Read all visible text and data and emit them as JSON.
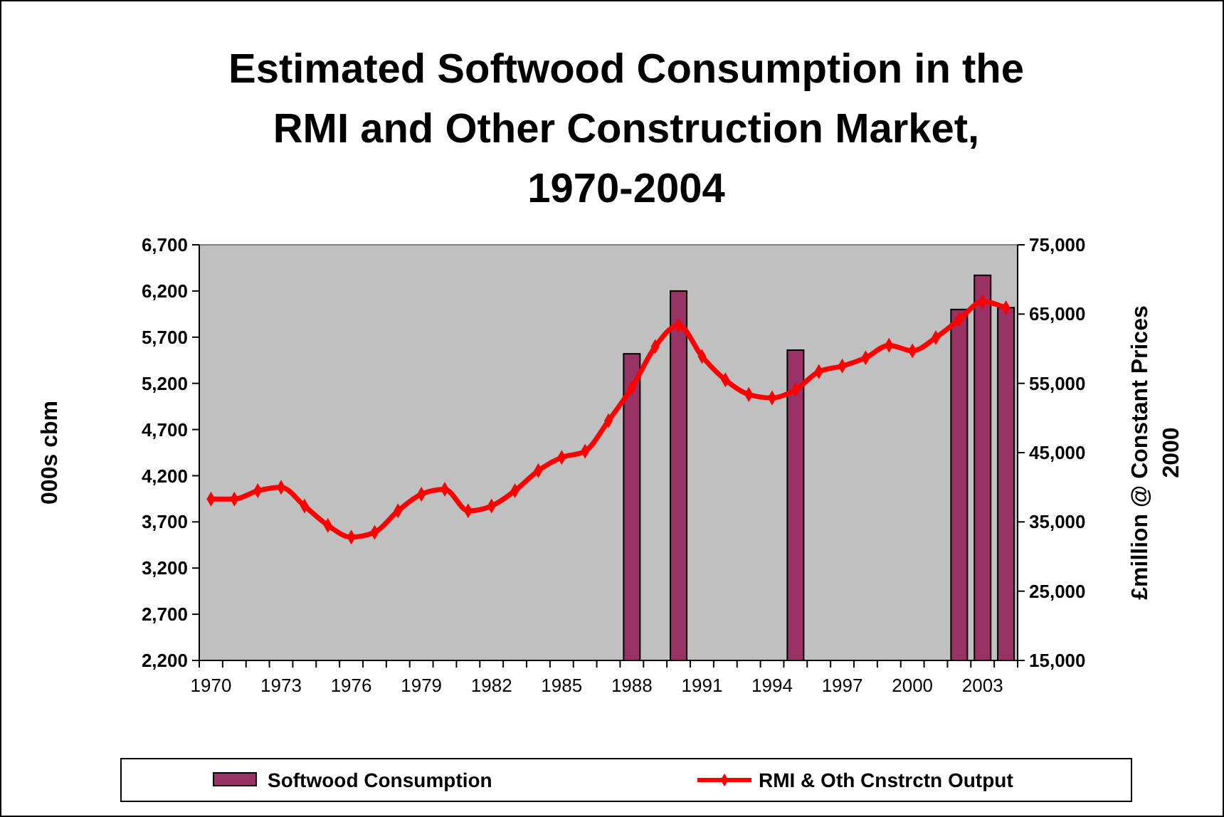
{
  "chart_data": {
    "type": "bar",
    "title": "Estimated Softwood Consumption in the\nRMI and Other Construction Market,\n1970-2004",
    "ylabel": "000s cbm",
    "y2label": "£million @ Constant Prices\n2000",
    "categories": [
      "1970",
      null,
      null,
      "1973",
      null,
      null,
      "1976",
      null,
      null,
      "1979",
      null,
      null,
      "1982",
      null,
      null,
      "1985",
      null,
      null,
      "1988",
      null,
      null,
      "1991",
      null,
      null,
      "1994",
      null,
      null,
      "1997",
      null,
      null,
      "2000",
      null,
      null,
      "2003",
      null
    ],
    "series": [
      {
        "name": "Softwood Consumption",
        "color": "#993366",
        "values": [
          null,
          null,
          null,
          null,
          null,
          null,
          null,
          null,
          null,
          null,
          null,
          null,
          null,
          null,
          null,
          null,
          null,
          null,
          5520,
          null,
          6200,
          null,
          null,
          null,
          null,
          5560,
          null,
          null,
          null,
          null,
          null,
          null,
          6000,
          6370,
          6020
        ]
      },
      {
        "name": "RMI & Oth Cnstrctn Output",
        "type": "line",
        "axis": "y2",
        "color": "#ff0000",
        "values": [
          38300,
          38300,
          39500,
          40000,
          37300,
          34500,
          32800,
          33500,
          36600,
          39000,
          39700,
          36600,
          37300,
          39500,
          42400,
          44300,
          45200,
          49600,
          54400,
          60300,
          63400,
          58900,
          55500,
          53400,
          52900,
          54100,
          56700,
          57500,
          58700,
          60500,
          59700,
          61600,
          64200,
          66800,
          65900
        ]
      }
    ],
    "ylim": [
      2200,
      6700
    ],
    "yticks": [
      {
        "value": 2200,
        "label": "2,200"
      },
      {
        "value": 2700,
        "label": "2,700"
      },
      {
        "value": 3200,
        "label": "3,200"
      },
      {
        "value": 3700,
        "label": "3,700"
      },
      {
        "value": 4200,
        "label": "4,200"
      },
      {
        "value": 4700,
        "label": "4,700"
      },
      {
        "value": 5200,
        "label": "5,200"
      },
      {
        "value": 5700,
        "label": "5,700"
      },
      {
        "value": 6200,
        "label": "6,200"
      },
      {
        "value": 6700,
        "label": "6,700"
      }
    ],
    "y2lim": [
      15000,
      75000
    ],
    "y2ticks": [
      {
        "value": 15000,
        "label": "15,000"
      },
      {
        "value": 25000,
        "label": "25,000"
      },
      {
        "value": 35000,
        "label": "35,000"
      },
      {
        "value": 45000,
        "label": "45,000"
      },
      {
        "value": 55000,
        "label": "55,000"
      },
      {
        "value": 65000,
        "label": "65,000"
      },
      {
        "value": 75000,
        "label": "75,000"
      }
    ],
    "grid": false,
    "legend": "bottom",
    "marker": "diamond",
    "line_style": "solid"
  }
}
